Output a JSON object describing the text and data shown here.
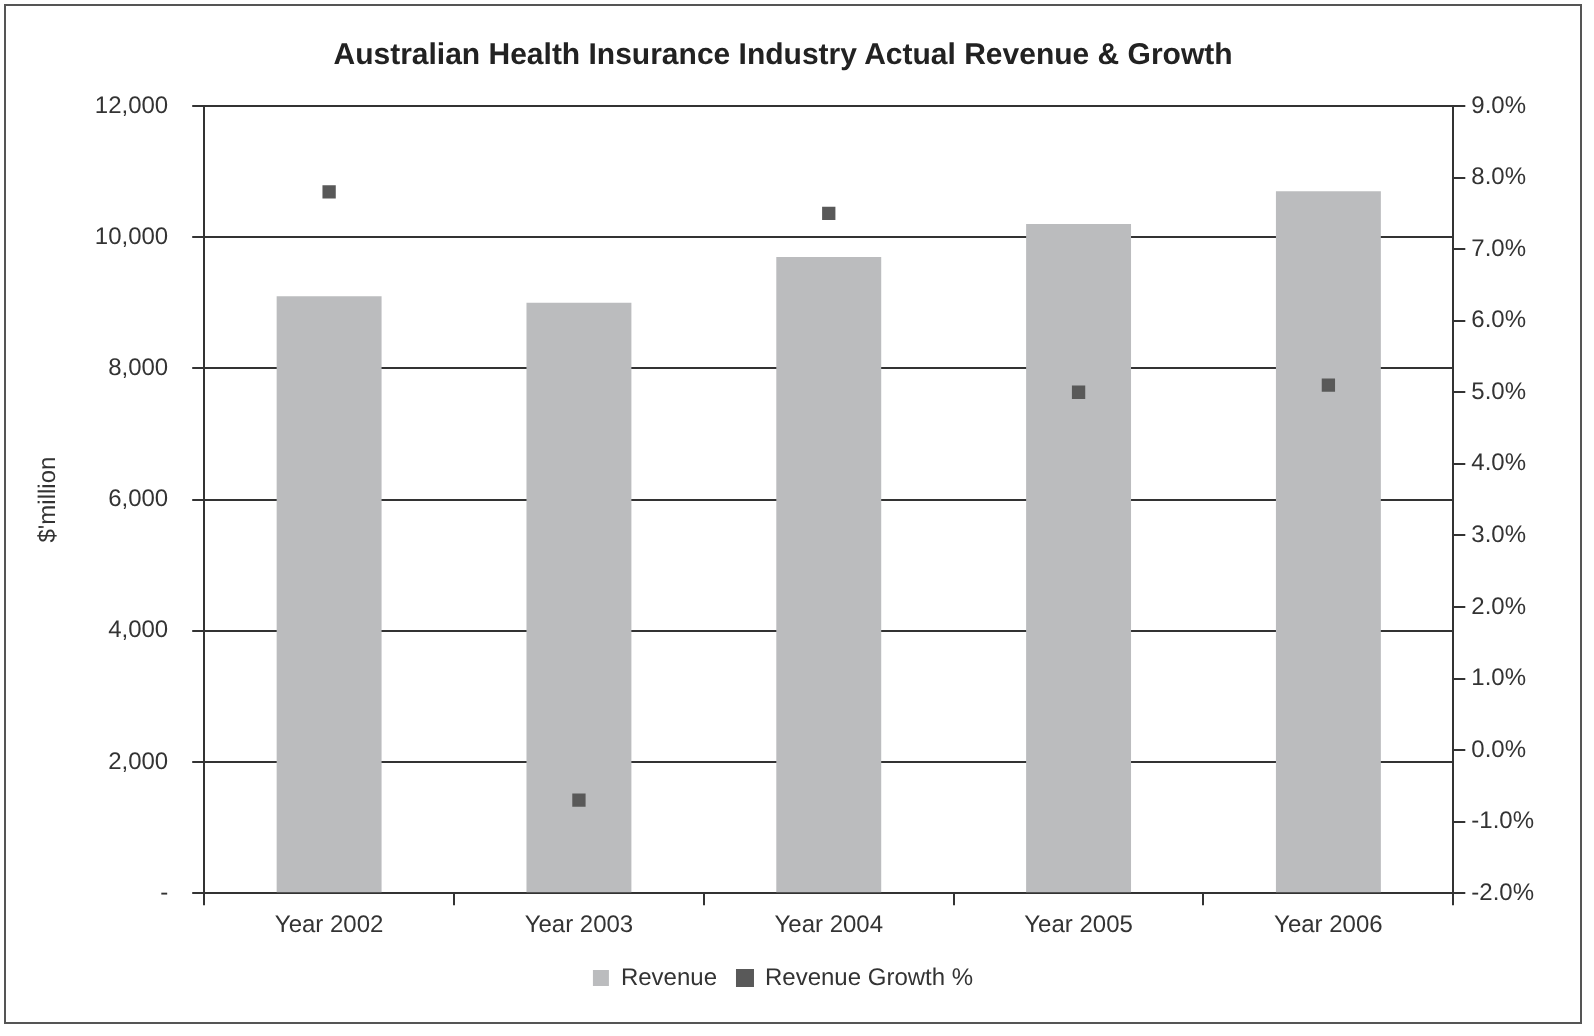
{
  "chart_data": {
    "type": "bar",
    "title": "Australian Health Insurance Industry Actual Revenue & Growth",
    "ylabel": "$'million",
    "categories": [
      "Year 2002",
      "Year 2003",
      "Year 2004",
      "Year 2005",
      "Year 2006"
    ],
    "series": [
      {
        "name": "Revenue",
        "color": "#bbbcbe",
        "values": [
          9100,
          9000,
          9700,
          10200,
          10700
        ]
      },
      {
        "name": "Revenue Growth %",
        "type": "scatter",
        "axis": "y2",
        "color": "#595959",
        "x": [
          "Year 2002",
          "Year 2003",
          "Year 2004",
          "Year 2005",
          "Year 2006"
        ],
        "values": [
          7.8,
          -0.7,
          7.5,
          5.0,
          5.1
        ]
      }
    ],
    "ylim": [
      0,
      12000
    ],
    "yticks": [
      {
        "value": 0,
        "label": "-"
      },
      {
        "value": 2000,
        "label": "2,000"
      },
      {
        "value": 4000,
        "label": "4,000"
      },
      {
        "value": 6000,
        "label": "6,000"
      },
      {
        "value": 8000,
        "label": "8,000"
      },
      {
        "value": 10000,
        "label": "10,000"
      },
      {
        "value": 12000,
        "label": "12,000"
      }
    ],
    "y2lim": [
      -2,
      9
    ],
    "y2ticks": [
      {
        "value": -2,
        "label": "-2.0%"
      },
      {
        "value": -1,
        "label": "-1.0%"
      },
      {
        "value": 0,
        "label": "0.0%"
      },
      {
        "value": 1,
        "label": "1.0%"
      },
      {
        "value": 2,
        "label": "2.0%"
      },
      {
        "value": 3,
        "label": "3.0%"
      },
      {
        "value": 4,
        "label": "4.0%"
      },
      {
        "value": 5,
        "label": "5.0%"
      },
      {
        "value": 6,
        "label": "6.0%"
      },
      {
        "value": 7,
        "label": "7.0%"
      },
      {
        "value": 8,
        "label": "8.0%"
      },
      {
        "value": 9,
        "label": "9.0%"
      }
    ],
    "grid": "y",
    "legend": "bottom",
    "marker": "square"
  }
}
